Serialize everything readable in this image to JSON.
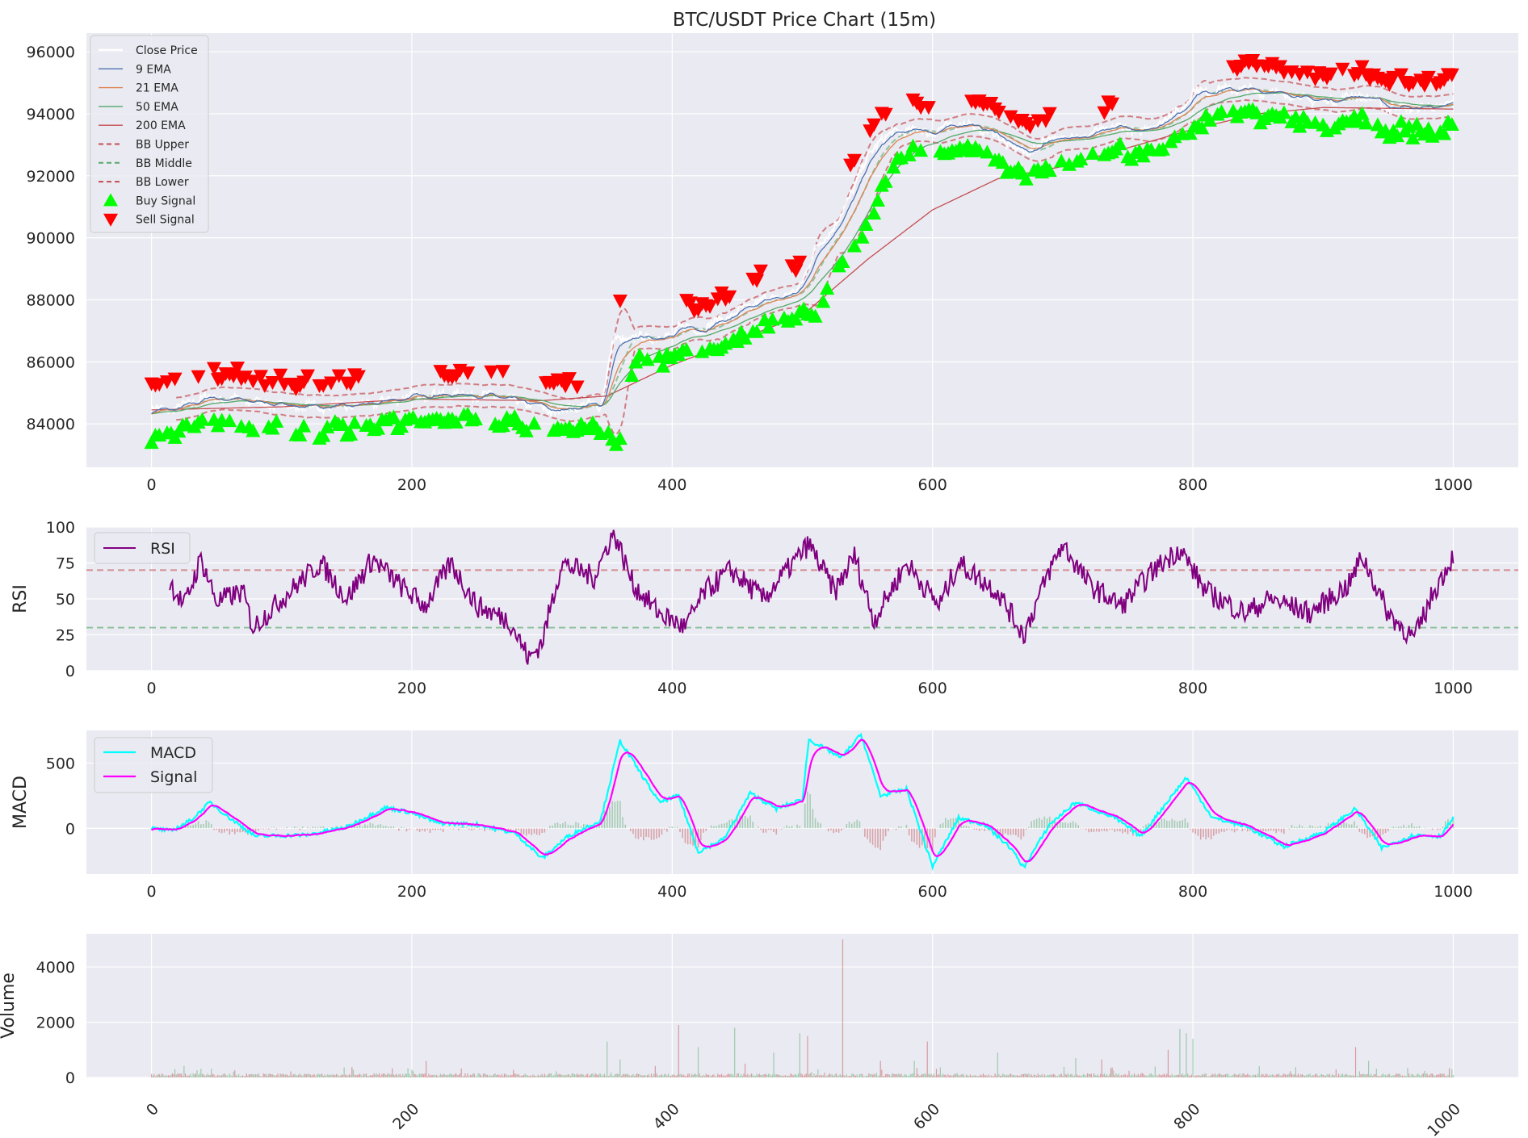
{
  "colors": {
    "panel_bg": "#EAEAF2",
    "grid": "#ffffff",
    "close": "#ffffff",
    "ema9": "#4C72B0",
    "ema21": "#DD8452",
    "ema50": "#55A868",
    "ema200": "#C44E52",
    "bb_upper": "#C44E52",
    "bb_middle": "#55A868",
    "bb_lower": "#C44E52",
    "buy": "#00FF00",
    "sell": "#FF0000",
    "rsi": "#800080",
    "rsi_overbought": "#C44E52",
    "rsi_oversold": "#55A868",
    "macd": "#00FFFF",
    "macd_signal": "#FF00FF",
    "hist_pos": "#55A868",
    "hist_neg": "#C44E52"
  },
  "chart_data": [
    {
      "type": "line",
      "panel": "price",
      "title": "BTC/USDT Price Chart (15m)",
      "ylabel": "",
      "xlim": [
        -50,
        1050
      ],
      "ylim": [
        82600,
        96600
      ],
      "x_ticks": [
        "0",
        "200",
        "400",
        "600",
        "800",
        "1000"
      ],
      "y_ticks": [
        "84000",
        "86000",
        "88000",
        "90000",
        "92000",
        "94000",
        "96000"
      ],
      "grid": true,
      "legend_position": "upper-left",
      "price_keyframes": [
        [
          0,
          84450
        ],
        [
          20,
          84500
        ],
        [
          40,
          84850
        ],
        [
          60,
          84800
        ],
        [
          80,
          84700
        ],
        [
          100,
          84600
        ],
        [
          130,
          84550
        ],
        [
          160,
          84600
        ],
        [
          180,
          84750
        ],
        [
          200,
          84900
        ],
        [
          230,
          84950
        ],
        [
          260,
          84900
        ],
        [
          290,
          84650
        ],
        [
          310,
          84400
        ],
        [
          330,
          84600
        ],
        [
          345,
          84600
        ],
        [
          355,
          86700
        ],
        [
          380,
          86800
        ],
        [
          400,
          86800
        ],
        [
          405,
          87200
        ],
        [
          420,
          87000
        ],
        [
          440,
          87400
        ],
        [
          470,
          88000
        ],
        [
          495,
          88200
        ],
        [
          510,
          89600
        ],
        [
          530,
          90700
        ],
        [
          545,
          92200
        ],
        [
          560,
          93200
        ],
        [
          580,
          93500
        ],
        [
          600,
          93400
        ],
        [
          620,
          93700
        ],
        [
          640,
          93500
        ],
        [
          660,
          93000
        ],
        [
          670,
          92700
        ],
        [
          690,
          93200
        ],
        [
          720,
          93300
        ],
        [
          740,
          93600
        ],
        [
          760,
          93400
        ],
        [
          790,
          94100
        ],
        [
          800,
          94700
        ],
        [
          830,
          94800
        ],
        [
          860,
          94700
        ],
        [
          900,
          94400
        ],
        [
          930,
          94600
        ],
        [
          950,
          94200
        ],
        [
          980,
          94200
        ],
        [
          1000,
          94300
        ]
      ],
      "ema200_keyframes": [
        [
          0,
          84450
        ],
        [
          100,
          84550
        ],
        [
          200,
          84800
        ],
        [
          300,
          84750
        ],
        [
          350,
          84900
        ],
        [
          400,
          85900
        ],
        [
          450,
          86700
        ],
        [
          500,
          87500
        ],
        [
          550,
          89300
        ],
        [
          600,
          90900
        ],
        [
          650,
          91900
        ],
        [
          700,
          92300
        ],
        [
          750,
          92900
        ],
        [
          800,
          93500
        ],
        [
          850,
          94000
        ],
        [
          900,
          94200
        ],
        [
          1000,
          94150
        ]
      ],
      "series": [
        {
          "name": "Close Price"
        },
        {
          "name": "9 EMA"
        },
        {
          "name": "21 EMA"
        },
        {
          "name": "50 EMA"
        },
        {
          "name": "200 EMA"
        },
        {
          "name": "BB Upper"
        },
        {
          "name": "BB Middle"
        },
        {
          "name": "BB Lower"
        },
        {
          "name": "Buy Signal"
        },
        {
          "name": "Sell Signal"
        }
      ]
    },
    {
      "type": "line",
      "panel": "rsi",
      "ylabel": "RSI",
      "xlim": [
        -50,
        1050
      ],
      "ylim": [
        0,
        100
      ],
      "x_ticks": [
        "0",
        "200",
        "400",
        "600",
        "800",
        "1000"
      ],
      "y_ticks": [
        "0",
        "25",
        "50",
        "75",
        "100"
      ],
      "reference_lines": [
        70,
        30
      ],
      "rsi_keyframes": [
        [
          14,
          62
        ],
        [
          25,
          45
        ],
        [
          38,
          78
        ],
        [
          50,
          48
        ],
        [
          70,
          55
        ],
        [
          78,
          30
        ],
        [
          100,
          50
        ],
        [
          130,
          75
        ],
        [
          150,
          50
        ],
        [
          170,
          78
        ],
        [
          190,
          60
        ],
        [
          210,
          45
        ],
        [
          230,
          75
        ],
        [
          250,
          45
        ],
        [
          275,
          35
        ],
        [
          290,
          8
        ],
        [
          300,
          20
        ],
        [
          315,
          75
        ],
        [
          340,
          65
        ],
        [
          355,
          97
        ],
        [
          370,
          60
        ],
        [
          390,
          40
        ],
        [
          410,
          30
        ],
        [
          425,
          55
        ],
        [
          445,
          70
        ],
        [
          470,
          50
        ],
        [
          505,
          88
        ],
        [
          525,
          55
        ],
        [
          540,
          80
        ],
        [
          555,
          35
        ],
        [
          580,
          75
        ],
        [
          605,
          45
        ],
        [
          620,
          75
        ],
        [
          650,
          55
        ],
        [
          670,
          25
        ],
        [
          690,
          70
        ],
        [
          700,
          88
        ],
        [
          720,
          60
        ],
        [
          745,
          45
        ],
        [
          770,
          70
        ],
        [
          790,
          85
        ],
        [
          810,
          55
        ],
        [
          840,
          40
        ],
        [
          860,
          50
        ],
        [
          890,
          40
        ],
        [
          920,
          60
        ],
        [
          930,
          80
        ],
        [
          950,
          40
        ],
        [
          970,
          22
        ],
        [
          985,
          55
        ],
        [
          1000,
          80
        ]
      ],
      "series": [
        {
          "name": "RSI"
        }
      ]
    },
    {
      "type": "line",
      "panel": "macd",
      "ylabel": "MACD",
      "xlim": [
        -50,
        1050
      ],
      "ylim": [
        -350,
        750
      ],
      "x_ticks": [
        "0",
        "200",
        "400",
        "600",
        "800",
        "1000"
      ],
      "y_ticks": [
        "0",
        "500"
      ],
      "macd_keyframes": [
        [
          0,
          0
        ],
        [
          15,
          -20
        ],
        [
          30,
          60
        ],
        [
          45,
          200
        ],
        [
          60,
          80
        ],
        [
          80,
          -60
        ],
        [
          120,
          -50
        ],
        [
          150,
          10
        ],
        [
          180,
          160
        ],
        [
          200,
          120
        ],
        [
          220,
          40
        ],
        [
          250,
          30
        ],
        [
          280,
          -40
        ],
        [
          300,
          -230
        ],
        [
          320,
          -60
        ],
        [
          345,
          60
        ],
        [
          360,
          670
        ],
        [
          390,
          200
        ],
        [
          405,
          250
        ],
        [
          420,
          -180
        ],
        [
          440,
          -80
        ],
        [
          460,
          270
        ],
        [
          480,
          150
        ],
        [
          500,
          220
        ],
        [
          505,
          680
        ],
        [
          530,
          540
        ],
        [
          545,
          720
        ],
        [
          560,
          250
        ],
        [
          580,
          300
        ],
        [
          600,
          -290
        ],
        [
          620,
          80
        ],
        [
          640,
          30
        ],
        [
          660,
          -150
        ],
        [
          670,
          -300
        ],
        [
          690,
          30
        ],
        [
          710,
          200
        ],
        [
          740,
          80
        ],
        [
          760,
          -60
        ],
        [
          780,
          200
        ],
        [
          795,
          390
        ],
        [
          815,
          80
        ],
        [
          840,
          20
        ],
        [
          870,
          -140
        ],
        [
          900,
          -30
        ],
        [
          925,
          150
        ],
        [
          945,
          -150
        ],
        [
          970,
          -50
        ],
        [
          990,
          -60
        ],
        [
          1000,
          80
        ]
      ],
      "series": [
        {
          "name": "MACD"
        },
        {
          "name": "Signal"
        }
      ]
    },
    {
      "type": "bar",
      "panel": "volume",
      "ylabel": "Volume",
      "xlim": [
        -50,
        1050
      ],
      "ylim": [
        0,
        5200
      ],
      "x_ticks": [
        "0",
        "200",
        "400",
        "600",
        "800",
        "1000"
      ],
      "y_ticks": [
        "0",
        "2000",
        "4000"
      ],
      "volume_spikes": [
        [
          18,
          300
        ],
        [
          25,
          420
        ],
        [
          35,
          260
        ],
        [
          211,
          600
        ],
        [
          350,
          1300
        ],
        [
          360,
          650
        ],
        [
          405,
          1900
        ],
        [
          420,
          1100
        ],
        [
          448,
          1800
        ],
        [
          456,
          500
        ],
        [
          478,
          900
        ],
        [
          498,
          1600
        ],
        [
          504,
          1500
        ],
        [
          531,
          5000
        ],
        [
          560,
          600
        ],
        [
          586,
          600
        ],
        [
          596,
          1300
        ],
        [
          650,
          900
        ],
        [
          710,
          700
        ],
        [
          730,
          650
        ],
        [
          781,
          1000
        ],
        [
          790,
          1750
        ],
        [
          795,
          1600
        ],
        [
          800,
          1400
        ],
        [
          925,
          1100
        ],
        [
          935,
          600
        ]
      ],
      "series": [
        {
          "name": "Volume"
        }
      ]
    }
  ]
}
